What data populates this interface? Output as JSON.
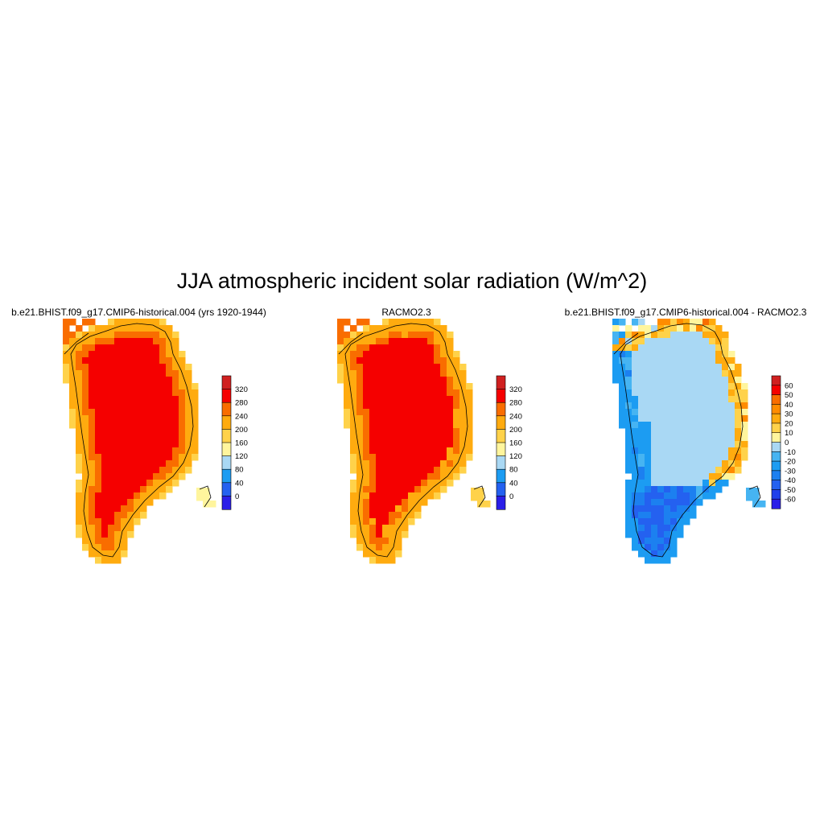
{
  "figure": {
    "title": "JJA atmospheric incident solar radiation (W/m^2)"
  },
  "chart_data": [
    {
      "type": "heatmap",
      "title": "b.e21.BHIST.f09_g17.CMIP6-historical.004 (yrs 1920-1944)",
      "colorbar": {
        "tick_labels": [
          "320",
          "280",
          "240",
          "200",
          "160",
          "120",
          "80",
          "40",
          "0"
        ],
        "levels": [
          -20,
          0,
          40,
          80,
          120,
          160,
          200,
          240,
          280,
          320,
          360
        ],
        "colors": [
          "#2a1ee8",
          "#2461f0",
          "#1c9cf2",
          "#a9d8f4",
          "#fff59d",
          "#ffd24a",
          "#ffab0f",
          "#f96d00",
          "#f50000",
          "#d02020"
        ]
      },
      "field_summary": {
        "interior_ice_sheet": 300,
        "inner_margin": 260,
        "outer_margin": 220,
        "coastal_edge": 180,
        "northwest_coast": 250
      }
    },
    {
      "type": "heatmap",
      "title": "RACMO2.3",
      "colorbar": {
        "tick_labels": [
          "320",
          "280",
          "240",
          "200",
          "160",
          "120",
          "80",
          "40",
          "0"
        ],
        "levels": [
          -20,
          0,
          40,
          80,
          120,
          160,
          200,
          240,
          280,
          320,
          360
        ],
        "colors": [
          "#2a1ee8",
          "#2461f0",
          "#1c9cf2",
          "#a9d8f4",
          "#fff59d",
          "#ffd24a",
          "#ffab0f",
          "#f96d00",
          "#f50000",
          "#d02020"
        ]
      },
      "field_summary": {
        "interior_ice_sheet": 300,
        "inner_margin": 250,
        "outer_margin": 215,
        "coastal_edge": 180,
        "northwest_coast": 240
      }
    },
    {
      "type": "heatmap",
      "title": "b.e21.BHIST.f09_g17.CMIP6-historical.004 - RACMO2.3",
      "colorbar": {
        "tick_labels": [
          "60",
          "50",
          "40",
          "30",
          "20",
          "10",
          "0",
          "-10",
          "-20",
          "-30",
          "-40",
          "-50",
          "-60"
        ],
        "levels": [
          -70,
          -60,
          -50,
          -40,
          -30,
          -20,
          -10,
          0,
          10,
          20,
          30,
          40,
          50,
          60,
          70
        ],
        "colors": [
          "#2a1ee8",
          "#2040ec",
          "#2461f0",
          "#1c80f0",
          "#1c9cf2",
          "#46b4f2",
          "#a9d8f4",
          "#fff59d",
          "#ffd24a",
          "#ffab0f",
          "#ff8c00",
          "#f96d00",
          "#f50000",
          "#d02020"
        ]
      },
      "field_summary": {
        "interior_ice_sheet": -5,
        "southwest_margin": -25,
        "southern_tip": -40,
        "east_coast": 20,
        "north_coast": 15
      }
    }
  ]
}
